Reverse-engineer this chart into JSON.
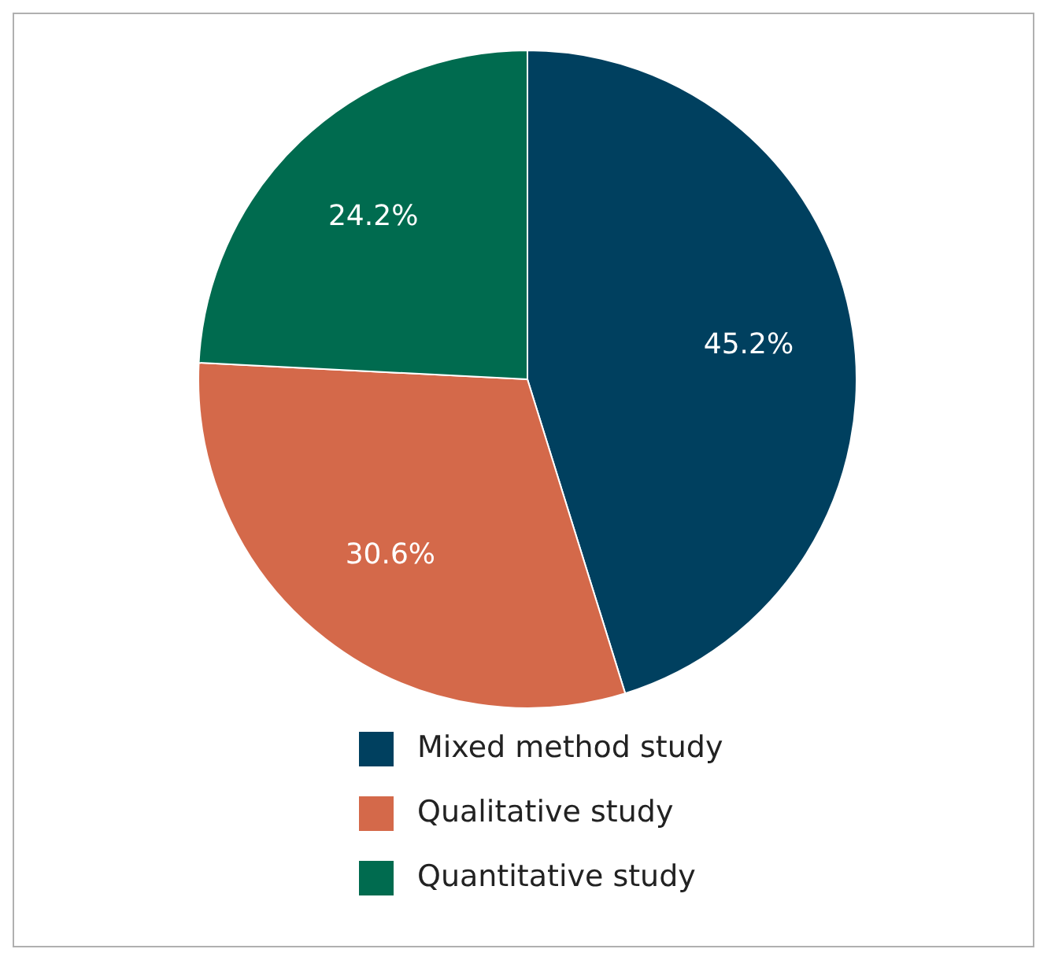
{
  "chart_data": {
    "type": "pie",
    "categories": [
      "Mixed method study",
      "Qualitative study",
      "Quantitative study"
    ],
    "values": [
      45.2,
      30.6,
      24.2
    ],
    "colors": [
      "#00405f",
      "#d4694a",
      "#006b4f"
    ],
    "value_labels": [
      "45.2%",
      "30.6%",
      "24.2%"
    ],
    "legend": "bottom"
  }
}
